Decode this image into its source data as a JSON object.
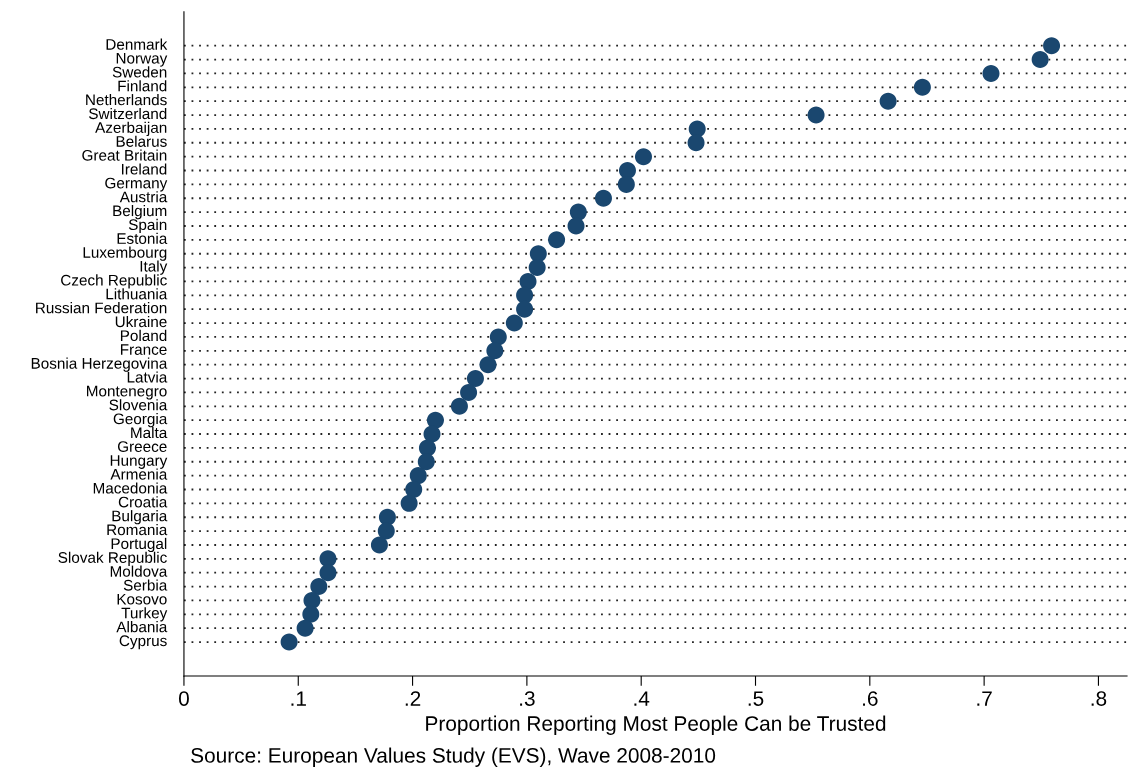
{
  "chart_data": {
    "type": "scatter",
    "orientation": "horizontal",
    "xlabel": "Proportion Reporting Most People Can be Trusted",
    "annotations": [
      "Source: European Values Study (EVS), Wave 2008-2010"
    ],
    "categories": [
      "Denmark",
      "Norway",
      "Sweden",
      "Finland",
      "Netherlands",
      "Switzerland",
      "Azerbaijan",
      "Belarus",
      "Great Britain",
      "Ireland",
      "Germany",
      "Austria",
      "Belgium",
      "Spain",
      "Estonia",
      "Luxembourg",
      "Italy",
      "Czech Republic",
      "Lithuania",
      "Russian Federation",
      "Ukraine",
      "Poland",
      "France",
      "Bosnia Herzegovina",
      "Latvia",
      "Montenegro",
      "Slovenia",
      "Georgia",
      "Malta",
      "Greece",
      "Hungary",
      "Armenia",
      "Macedonia",
      "Croatia",
      "Bulgaria",
      "Romania",
      "Portugal",
      "Slovak Republic",
      "Moldova",
      "Serbia",
      "Kosovo",
      "Turkey",
      "Albania",
      "Cyprus"
    ],
    "values": [
      0.759,
      0.749,
      0.706,
      0.646,
      0.616,
      0.553,
      0.449,
      0.448,
      0.402,
      0.388,
      0.387,
      0.367,
      0.345,
      0.343,
      0.326,
      0.31,
      0.309,
      0.301,
      0.298,
      0.298,
      0.289,
      0.275,
      0.272,
      0.266,
      0.255,
      0.249,
      0.241,
      0.22,
      0.217,
      0.213,
      0.212,
      0.205,
      0.201,
      0.197,
      0.178,
      0.177,
      0.171,
      0.126,
      0.126,
      0.118,
      0.112,
      0.111,
      0.106,
      0.092
    ],
    "color": "#1a476f",
    "marker": "circle",
    "grid": "y",
    "line_style": "dotted",
    "xlim": [
      0,
      0.825
    ],
    "xticks": [
      0,
      {
        "value": 0.1,
        "label": ".1"
      },
      {
        "value": 0.2,
        "label": ".2"
      },
      {
        "value": 0.3,
        "label": ".3"
      },
      {
        "value": 0.4,
        "label": ".4"
      },
      {
        "value": 0.5,
        "label": ".5"
      },
      {
        "value": 0.6,
        "label": ".6"
      },
      {
        "value": 0.7,
        "label": ".7"
      },
      {
        "value": 0.8,
        "label": ".8"
      }
    ]
  }
}
